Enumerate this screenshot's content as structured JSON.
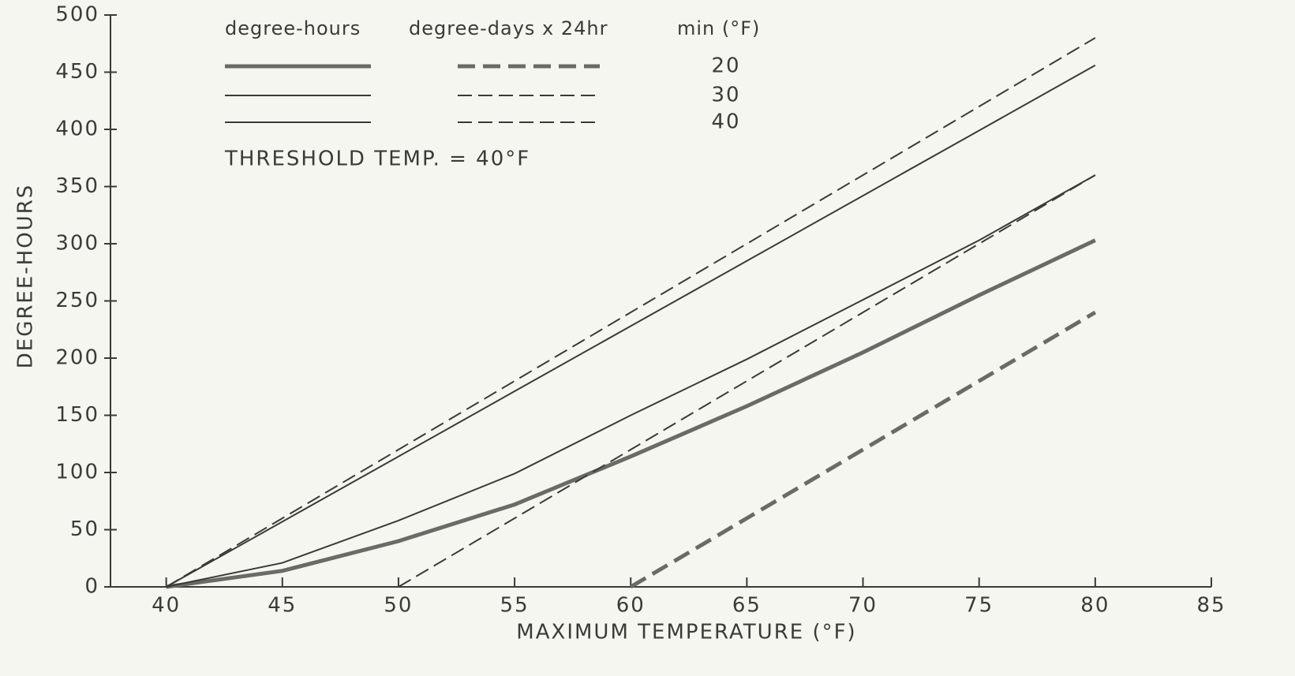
{
  "chart_data": {
    "type": "line",
    "xlabel": "MAXIMUM  TEMPERATURE (°F)",
    "ylabel": "DEGREE-HOURS",
    "annotation": "THRESHOLD TEMP. = 40°F",
    "legend": {
      "headers": [
        "degree-hours",
        "degree-days x 24hr",
        "min (°F)"
      ],
      "rows": [
        "20",
        "30",
        "40"
      ]
    },
    "x": [
      40,
      45,
      50,
      55,
      60,
      65,
      70,
      75,
      80
    ],
    "series": [
      {
        "color": "#6a6a66",
        "dash": false,
        "width": 5,
        "values": [
          0,
          14,
          40,
          72,
          114,
          158,
          205,
          255,
          303
        ]
      },
      {
        "color": "#3a3a38",
        "dash": false,
        "width": 2,
        "values": [
          0,
          21,
          58,
          99,
          150,
          199,
          251,
          303,
          360
        ]
      },
      {
        "color": "#3a3a38",
        "dash": false,
        "width": 2,
        "values": [
          0,
          57,
          114,
          171,
          228,
          285,
          342,
          399,
          456
        ]
      },
      {
        "color": "#6a6a66",
        "dash": true,
        "width": 5,
        "values": [
          null,
          null,
          null,
          null,
          0,
          60,
          120,
          180,
          240
        ]
      },
      {
        "color": "#3a3a38",
        "dash": true,
        "width": 2,
        "values": [
          null,
          null,
          0,
          60,
          120,
          180,
          240,
          300,
          360
        ]
      },
      {
        "color": "#3a3a38",
        "dash": true,
        "width": 2,
        "values": [
          0,
          60,
          120,
          180,
          240,
          300,
          360,
          420,
          480
        ]
      }
    ],
    "xlim": [
      37.6,
      85
    ],
    "xticks": [
      40,
      45,
      50,
      55,
      60,
      65,
      70,
      75,
      80,
      85
    ],
    "ylim": [
      0,
      500
    ],
    "yticks": [
      0,
      50,
      100,
      150,
      200,
      250,
      300,
      350,
      400,
      450,
      500
    ]
  }
}
